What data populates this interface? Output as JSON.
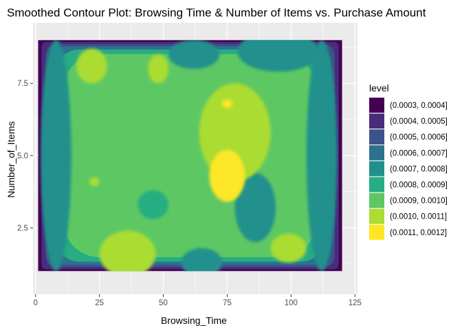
{
  "chart_data": {
    "type": "contour",
    "title": "Smoothed Contour Plot: Browsing Time & Number of Items vs. Purchase Amount",
    "xlabel": "Browsing_Time",
    "ylabel": "Number_of_Items",
    "xlim": [
      -1,
      126
    ],
    "ylim": [
      0.2,
      9.6
    ],
    "x_range": [
      1,
      120
    ],
    "y_range": [
      1,
      9
    ],
    "x_ticks": [
      0,
      25,
      50,
      75,
      100,
      125
    ],
    "y_ticks": [
      2.5,
      5.0,
      7.5
    ],
    "y_tick_labels": [
      "2.5",
      "5.0",
      "7.5"
    ],
    "grid": true,
    "legend_position": "right",
    "legend": {
      "title": "level",
      "levels": [
        {
          "label": "(0.0003, 0.0004]",
          "color": "#440154"
        },
        {
          "label": "(0.0004, 0.0005]",
          "color": "#472D7B"
        },
        {
          "label": "(0.0005, 0.0006]",
          "color": "#3B528B"
        },
        {
          "label": "(0.0006, 0.0007]",
          "color": "#2C728E"
        },
        {
          "label": "(0.0007, 0.0008]",
          "color": "#21908C"
        },
        {
          "label": "(0.0008, 0.0009]",
          "color": "#27AD81"
        },
        {
          "label": "(0.0009, 0.0010]",
          "color": "#5DC863"
        },
        {
          "label": "(0.0010, 0.0011]",
          "color": "#AADC32"
        },
        {
          "label": "(0.0011, 0.0012]",
          "color": "#FDE725"
        }
      ]
    },
    "regions": [
      {
        "level": 4,
        "center": [
          95,
          8.6
        ],
        "sx": 16,
        "sy": 0.7
      },
      {
        "level": 4,
        "center": [
          62,
          8.5
        ],
        "sx": 10,
        "sy": 0.5
      },
      {
        "level": 4,
        "center": [
          8,
          5.0
        ],
        "sx": 6,
        "sy": 4.0
      },
      {
        "level": 4,
        "center": [
          112,
          5.0
        ],
        "sx": 6,
        "sy": 4.0
      },
      {
        "level": 4,
        "center": [
          86,
          3.2
        ],
        "sx": 8,
        "sy": 1.2
      },
      {
        "level": 4,
        "center": [
          65,
          1.3
        ],
        "sx": 8,
        "sy": 0.5
      },
      {
        "level": 5,
        "center": [
          46,
          3.3
        ],
        "sx": 6,
        "sy": 0.5
      },
      {
        "level": 7,
        "center": [
          22,
          8.1
        ],
        "sx": 6,
        "sy": 0.6
      },
      {
        "level": 7,
        "center": [
          48,
          8.0
        ],
        "sx": 4,
        "sy": 0.5
      },
      {
        "level": 7,
        "center": [
          78,
          5.8
        ],
        "sx": 14,
        "sy": 1.7
      },
      {
        "level": 7,
        "center": [
          23,
          4.1
        ],
        "sx": 2,
        "sy": 0.15
      },
      {
        "level": 7,
        "center": [
          36,
          1.6
        ],
        "sx": 11,
        "sy": 0.8
      },
      {
        "level": 7,
        "center": [
          99,
          1.8
        ],
        "sx": 7,
        "sy": 0.5
      },
      {
        "level": 8,
        "center": [
          75,
          4.3
        ],
        "sx": 7,
        "sy": 0.9
      },
      {
        "level": 8,
        "center": [
          75,
          6.8
        ],
        "sx": 2,
        "sy": 0.15
      }
    ]
  }
}
